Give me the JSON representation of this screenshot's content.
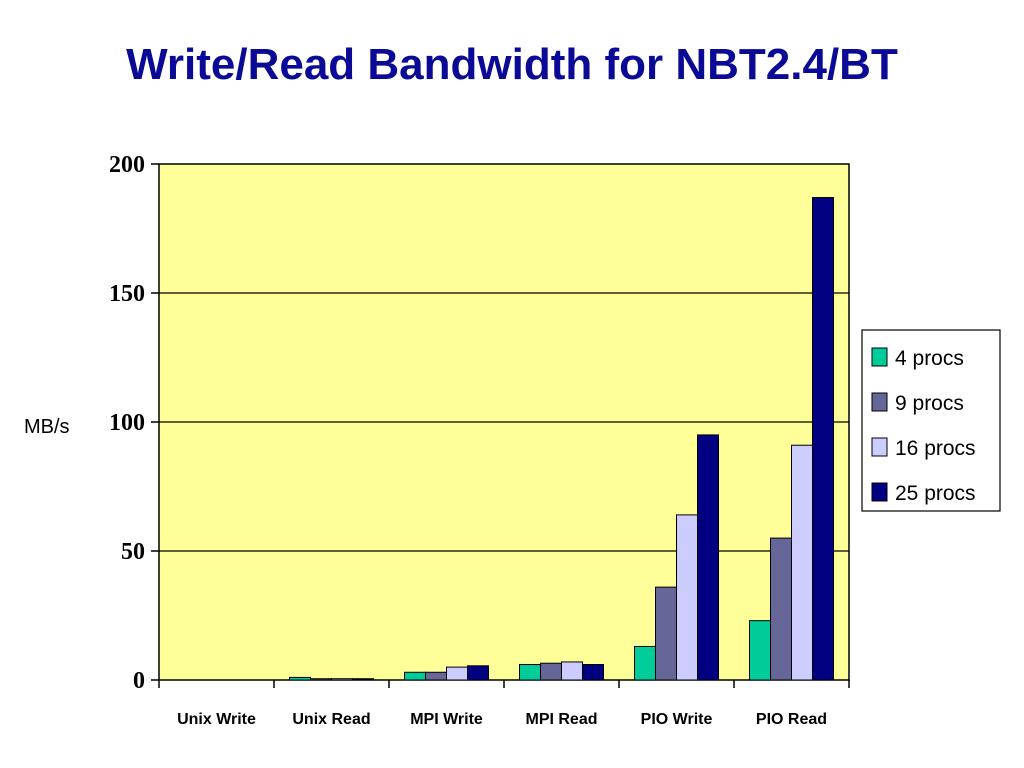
{
  "chart_data": {
    "type": "bar",
    "title": "Write/Read Bandwidth for NBT2.4/BT",
    "xlabel": "",
    "ylabel": "MB/s",
    "ylim": [
      0,
      200
    ],
    "yticks": [
      0,
      50,
      100,
      150,
      200
    ],
    "grid": true,
    "legend_position": "right",
    "plot_background": "#ffff99",
    "categories": [
      "Unix Write",
      "Unix Read",
      "MPI Write",
      "MPI Read",
      "PIO Write",
      "PIO Read"
    ],
    "series": [
      {
        "name": "4 procs",
        "color": "#00cc99",
        "values": [
          0,
          1,
          3,
          6,
          13,
          23
        ]
      },
      {
        "name": "9 procs",
        "color": "#666699",
        "values": [
          0,
          0.5,
          3,
          6.5,
          36,
          55
        ]
      },
      {
        "name": "16 procs",
        "color": "#ccccff",
        "values": [
          0,
          0.5,
          5,
          7,
          64,
          91
        ]
      },
      {
        "name": "25 procs",
        "color": "#000080",
        "values": [
          0,
          0.5,
          5.5,
          6,
          95,
          187
        ]
      }
    ]
  }
}
